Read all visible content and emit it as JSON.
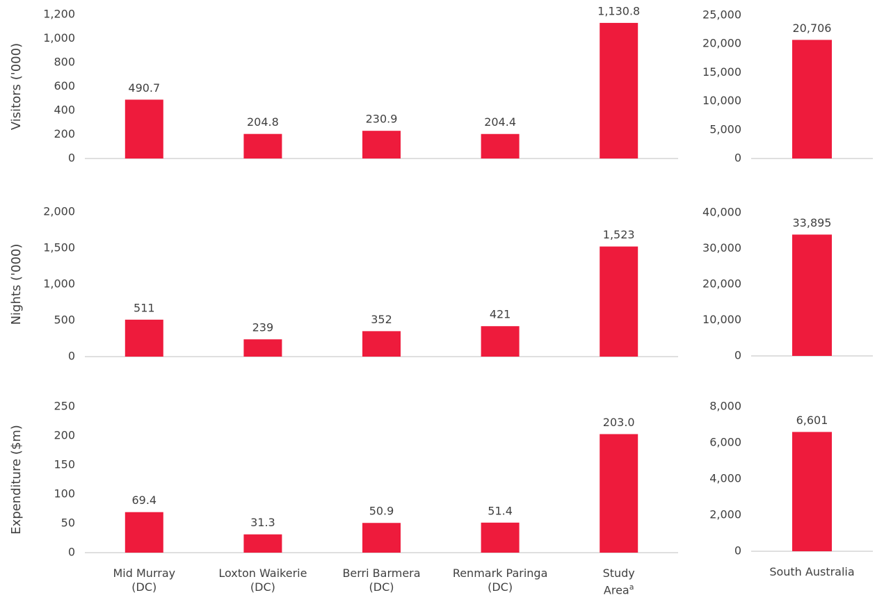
{
  "chart_data": [
    {
      "type": "bar",
      "ylabel": "Visitors ('000)",
      "categories": [
        null,
        null,
        null,
        null,
        null
      ],
      "values": [
        490.7,
        204.8,
        230.9,
        204.4,
        1130.8
      ],
      "value_labels": [
        "490.7",
        "204.8",
        "230.9",
        "204.4",
        "1,130.8"
      ],
      "color": "#ee1b3c",
      "ylim": [
        0,
        1200
      ],
      "yticks": [
        0,
        200,
        400,
        600,
        800,
        {
          "value": 1000,
          "label": "1,000"
        },
        {
          "value": 1200,
          "label": "1,200"
        }
      ]
    },
    {
      "type": "bar",
      "categories": [
        null
      ],
      "values": [
        20706
      ],
      "value_labels": [
        "20,706"
      ],
      "color": "#ee1b3c",
      "ylim": [
        0,
        25000
      ],
      "yticks": [
        0,
        {
          "value": 5000,
          "label": "5,000"
        },
        {
          "value": 10000,
          "label": "10,000"
        },
        {
          "value": 15000,
          "label": "15,000"
        },
        {
          "value": 20000,
          "label": "20,000"
        },
        {
          "value": 25000,
          "label": "25,000"
        }
      ]
    },
    {
      "type": "bar",
      "ylabel": "Nights ('000)",
      "categories": [
        null,
        null,
        null,
        null,
        null
      ],
      "values": [
        511,
        239,
        352,
        421,
        1523
      ],
      "value_labels": [
        "511",
        "239",
        "352",
        "421",
        "1,523"
      ],
      "color": "#ee1b3c",
      "ylim": [
        0,
        2000
      ],
      "yticks": [
        0,
        500,
        {
          "value": 1000,
          "label": "1,000"
        },
        {
          "value": 1500,
          "label": "1,500"
        },
        {
          "value": 2000,
          "label": "2,000"
        }
      ]
    },
    {
      "type": "bar",
      "categories": [
        null
      ],
      "values": [
        33895
      ],
      "value_labels": [
        "33,895"
      ],
      "color": "#ee1b3c",
      "ylim": [
        0,
        40000
      ],
      "yticks": [
        0,
        {
          "value": 10000,
          "label": "10,000"
        },
        {
          "value": 20000,
          "label": "20,000"
        },
        {
          "value": 30000,
          "label": "30,000"
        },
        {
          "value": 40000,
          "label": "40,000"
        }
      ]
    },
    {
      "type": "bar",
      "ylabel": "Expenditure ($m)",
      "categories": [
        "Mid Murray\n(DC)",
        "Loxton Waikerie\n(DC)",
        "Berri Barmera\n(DC)",
        "Renmark Paringa\n(DC)",
        "Study\nArea"
      ],
      "category_notes": [
        null,
        null,
        null,
        null,
        "a"
      ],
      "values": [
        69.4,
        31.3,
        50.9,
        51.4,
        203.0
      ],
      "value_labels": [
        "69.4",
        "31.3",
        "50.9",
        "51.4",
        "203.0"
      ],
      "color": "#ee1b3c",
      "ylim": [
        0,
        250
      ],
      "yticks": [
        0,
        50,
        100,
        150,
        200,
        250
      ]
    },
    {
      "type": "bar",
      "categories": [
        "South Australia"
      ],
      "values": [
        6601
      ],
      "value_labels": [
        "6,601"
      ],
      "color": "#ee1b3c",
      "ylim": [
        0,
        8000
      ],
      "yticks": [
        0,
        {
          "value": 2000,
          "label": "2,000"
        },
        {
          "value": 4000,
          "label": "4,000"
        },
        {
          "value": 6000,
          "label": "6,000"
        },
        {
          "value": 8000,
          "label": "8,000"
        }
      ]
    }
  ]
}
